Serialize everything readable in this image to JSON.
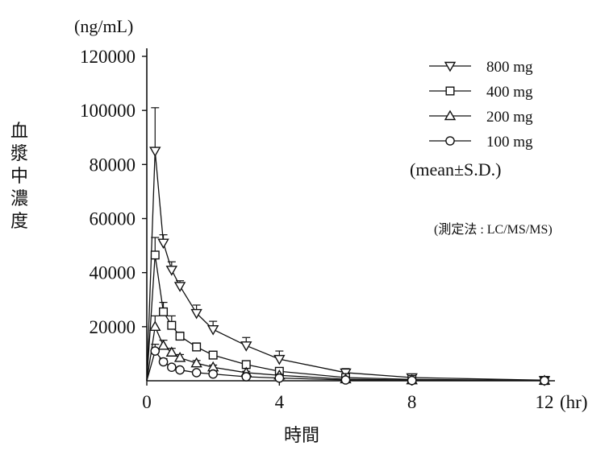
{
  "chart_data": {
    "type": "line",
    "title": "",
    "ylabel": "血漿中濃度",
    "yunit": "(ng/mL)",
    "xlabel": "時間",
    "xunit": "(hr)",
    "xlim": [
      0,
      12
    ],
    "ylim": [
      0,
      120000
    ],
    "xticks": [
      0,
      4,
      8,
      12
    ],
    "yticks": [
      20000,
      40000,
      60000,
      80000,
      100000,
      120000
    ],
    "grid": false,
    "legend_position": "top-right",
    "legend_note": "(mean±S.D.)",
    "method_note": "(測定法 : LC/MS/MS)",
    "series": [
      {
        "name": "800 mg",
        "marker": "triangle-down",
        "x": [
          0,
          0.25,
          0.5,
          0.75,
          1,
          1.5,
          2,
          3,
          4,
          6,
          8,
          12
        ],
        "y": [
          0,
          85000,
          51000,
          41000,
          35000,
          25000,
          19000,
          13000,
          8000,
          3000,
          1200,
          200
        ],
        "sd": [
          0,
          16000,
          3000,
          3000,
          2000,
          3000,
          3000,
          3000,
          3000,
          1500,
          700,
          0
        ]
      },
      {
        "name": "400 mg",
        "marker": "square",
        "x": [
          0,
          0.25,
          0.5,
          0.75,
          1,
          1.5,
          2,
          3,
          4,
          6,
          8,
          12
        ],
        "y": [
          0,
          46500,
          25500,
          20500,
          16500,
          12500,
          9500,
          6000,
          3500,
          1200,
          500,
          100
        ],
        "sd": [
          0,
          6500,
          3500,
          3500,
          1500,
          1500,
          800,
          800,
          700,
          400,
          200,
          0
        ]
      },
      {
        "name": "200 mg",
        "marker": "triangle-up",
        "x": [
          0,
          0.25,
          0.5,
          0.75,
          1,
          1.5,
          2,
          3,
          4,
          6,
          8,
          12
        ],
        "y": [
          0,
          20000,
          13000,
          10500,
          8500,
          6500,
          5000,
          3000,
          2000,
          600,
          250,
          50
        ],
        "sd": [
          0,
          4000,
          2000,
          1500,
          1200,
          1000,
          800,
          500,
          400,
          200,
          100,
          0
        ]
      },
      {
        "name": "100 mg",
        "marker": "circle",
        "x": [
          0,
          0.25,
          0.5,
          0.75,
          1,
          1.5,
          2,
          3,
          4,
          6,
          8,
          12
        ],
        "y": [
          0,
          11000,
          7000,
          5000,
          4000,
          3000,
          2500,
          1500,
          1000,
          300,
          100,
          50
        ],
        "sd": [
          0,
          2500,
          1200,
          800,
          600,
          500,
          400,
          300,
          200,
          100,
          50,
          0
        ]
      }
    ]
  }
}
